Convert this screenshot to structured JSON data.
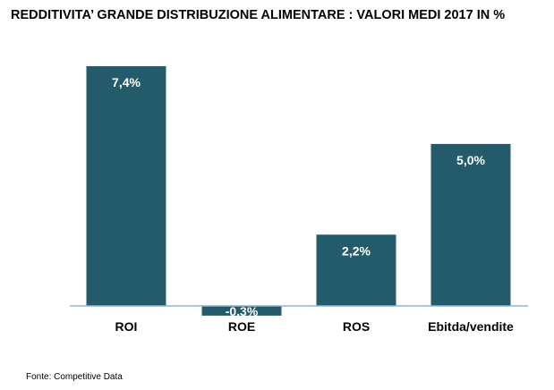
{
  "chart_data": {
    "type": "bar",
    "title": "REDDITIVITA’ GRANDE DISTRIBUZIONE ALIMENTARE : VALORI MEDI 2017 IN %",
    "categories": [
      "ROI",
      "ROE",
      "ROS",
      "Ebitda/vendite"
    ],
    "values": [
      7.4,
      -0.3,
      2.2,
      5.0
    ],
    "value_labels": [
      "7,4%",
      "-0,3%",
      "2,2%",
      "5,0%"
    ],
    "xlabel": "",
    "ylabel": "",
    "ylim": [
      -0.3,
      7.4
    ],
    "grid": false,
    "bar_color": "#245b6a",
    "source": "Fonte: Competitive Data"
  }
}
